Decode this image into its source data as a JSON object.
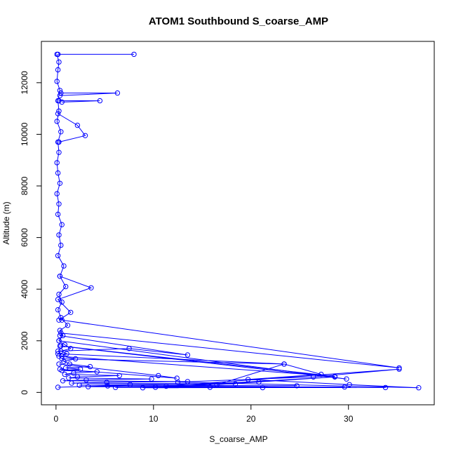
{
  "chart_data": {
    "type": "line",
    "title": "ATOM1 Southbound S_coarse_AMP",
    "xlabel": "S_coarse_AMP",
    "ylabel": "Altitude (m)",
    "xlim": [
      -1.5,
      38.8
    ],
    "ylim": [
      -480,
      13600
    ],
    "xticks": [
      0,
      10,
      20,
      30
    ],
    "xtick_labels": [
      "0",
      "10",
      "20",
      "30"
    ],
    "yticks": [
      0,
      2000,
      4000,
      6000,
      8000,
      10000,
      12000
    ],
    "ytick_labels": [
      "0",
      "2000",
      "4000",
      "6000",
      "8000",
      "10000",
      "12000"
    ],
    "grid": false,
    "legend": "none",
    "color": "#0000ff",
    "markers": "open-circle",
    "series": [
      {
        "x": [
          0.1,
          0.3,
          0.2,
          0.1,
          0.4,
          0.2,
          0.3,
          0.1,
          0.5,
          0.2,
          0.3,
          0.1,
          0.2,
          0.4,
          0.1,
          0.3,
          0.2,
          0.6,
          0.3,
          0.5,
          0.2,
          0.8,
          0.4,
          1.0,
          0.3,
          0.6,
          0.2,
          0.5,
          1.2,
          0.4,
          0.7,
          0.3,
          0.9,
          1.5,
          0.5,
          1.1,
          0.6,
          2.0,
          0.8,
          1.4,
          3.5,
          1.0,
          2.5,
          0.6,
          4.2,
          1.8,
          0.9,
          6.5,
          2.2,
          1.3,
          9.8,
          3.1,
          0.7,
          13.5,
          5.2,
          1.6,
          18.4,
          7.6,
          2.4,
          24.7,
          11.3,
          3.3,
          29.6,
          15.8,
          6.1,
          33.8,
          21.2,
          8.9,
          35.2,
          26.4,
          12.5,
          37.2,
          30.1,
          19.7,
          27.2,
          23.4,
          16.5,
          28.6,
          10.2,
          20.8,
          5.3,
          0.2
        ],
        "y": [
          13100,
          12800,
          12500,
          12050,
          11700,
          11300,
          10900,
          10500,
          10100,
          9700,
          9300,
          8900,
          8500,
          8100,
          7700,
          7300,
          6900,
          6500,
          6100,
          5700,
          5300,
          4900,
          4500,
          4100,
          3800,
          3500,
          3200,
          2900,
          2600,
          2400,
          2200,
          2000,
          1850,
          1700,
          1600,
          1500,
          1400,
          1300,
          1200,
          1100,
          1000,
          950,
          900,
          850,
          800,
          750,
          700,
          650,
          600,
          560,
          520,
          480,
          450,
          420,
          390,
          360,
          330,
          300,
          280,
          260,
          240,
          220,
          210,
          200,
          195,
          190,
          185,
          180,
          900,
          600,
          400,
          180,
          300,
          500,
          700,
          1100,
          300,
          600,
          200,
          400,
          250,
          200
        ]
      },
      {
        "x": [
          0.2,
          8.0
        ],
        "y": [
          13100,
          13100
        ]
      },
      {
        "x": [
          0.5,
          6.3,
          0.4
        ],
        "y": [
          11600,
          11600,
          11500
        ]
      },
      {
        "x": [
          0.3,
          4.5,
          0.6
        ],
        "y": [
          11300,
          11300,
          11250
        ]
      },
      {
        "x": [
          0.2,
          2.2,
          3.0,
          0.3
        ],
        "y": [
          10800,
          10350,
          9950,
          9700
        ]
      },
      {
        "x": [
          0.4,
          3.6,
          0.2,
          1.5,
          0.3
        ],
        "y": [
          4500,
          4050,
          3600,
          3100,
          2800
        ]
      },
      {
        "x": [
          0.6,
          35.2,
          0.5
        ],
        "y": [
          2800,
          950,
          2300
        ]
      },
      {
        "x": [
          0.3,
          29.8,
          0.4
        ],
        "y": [
          2000,
          520,
          1800
        ]
      },
      {
        "x": [
          0.2,
          23.4,
          0.6
        ],
        "y": [
          1500,
          1100,
          1300
        ]
      },
      {
        "x": [
          0.4,
          13.5,
          7.5,
          0.2
        ],
        "y": [
          2200,
          1450,
          1700,
          1600
        ]
      },
      {
        "x": [
          0.5,
          28.6,
          0.3
        ],
        "y": [
          1800,
          620,
          1400
        ]
      },
      {
        "x": [
          0.3,
          10.5,
          12.4,
          0.4
        ],
        "y": [
          1100,
          650,
          550,
          900
        ]
      }
    ]
  }
}
